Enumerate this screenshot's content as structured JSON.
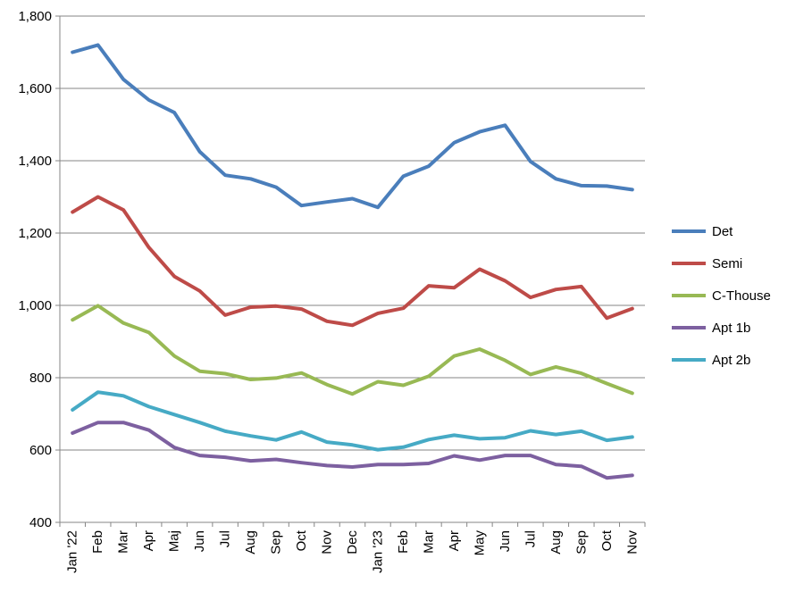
{
  "chart_data": {
    "type": "line",
    "title": "",
    "xlabel": "",
    "ylabel": "",
    "categories": [
      "Jan '22",
      "Feb",
      "Mar",
      "Apr",
      "Maj",
      "Jun",
      "Jul",
      "Aug",
      "Sep",
      "Oct",
      "Nov",
      "Dec",
      "Jan '23",
      "Feb",
      "Mar",
      "Apr",
      "May",
      "Jun",
      "Jul",
      "Aug",
      "Sep",
      "Oct",
      "Nov"
    ],
    "ylim": [
      400,
      1800
    ],
    "yticks": [
      400,
      600,
      800,
      1000,
      1200,
      1400,
      1600,
      1800
    ],
    "ytick_labels": [
      "400",
      "600",
      "800",
      "1,000",
      "1,200",
      "1,400",
      "1,600",
      "1,800"
    ],
    "grid": true,
    "legend_position": "right",
    "series": [
      {
        "name": "Det",
        "color": "#4a7ebb",
        "values": [
          1700,
          1720,
          1625,
          1568,
          1533,
          1425,
          1360,
          1350,
          1327,
          1276,
          1286,
          1295,
          1271,
          1357,
          1385,
          1450,
          1480,
          1498,
          1398,
          1350,
          1331,
          1330,
          1320
        ]
      },
      {
        "name": "Semi",
        "color": "#be4b48",
        "values": [
          1258,
          1300,
          1264,
          1160,
          1080,
          1040,
          973,
          995,
          998,
          990,
          956,
          945,
          978,
          992,
          1054,
          1049,
          1100,
          1068,
          1022,
          1044,
          1052,
          965,
          991
        ]
      },
      {
        "name": "C-Thouse",
        "color": "#98b954",
        "values": [
          960,
          999,
          951,
          925,
          860,
          818,
          811,
          795,
          799,
          813,
          781,
          755,
          789,
          779,
          804,
          860,
          879,
          848,
          809,
          830,
          812,
          784,
          757
        ]
      },
      {
        "name": "Apt 1b",
        "color": "#7d60a0",
        "values": [
          647,
          676,
          676,
          655,
          607,
          585,
          580,
          570,
          574,
          565,
          557,
          553,
          560,
          560,
          563,
          584,
          572,
          585,
          585,
          560,
          555,
          523,
          530
        ]
      },
      {
        "name": "Apt 2b",
        "color": "#46aac5",
        "values": [
          711,
          760,
          750,
          720,
          698,
          676,
          652,
          639,
          628,
          650,
          622,
          614,
          601,
          608,
          629,
          641,
          631,
          634,
          653,
          643,
          652,
          627,
          636
        ]
      }
    ]
  }
}
